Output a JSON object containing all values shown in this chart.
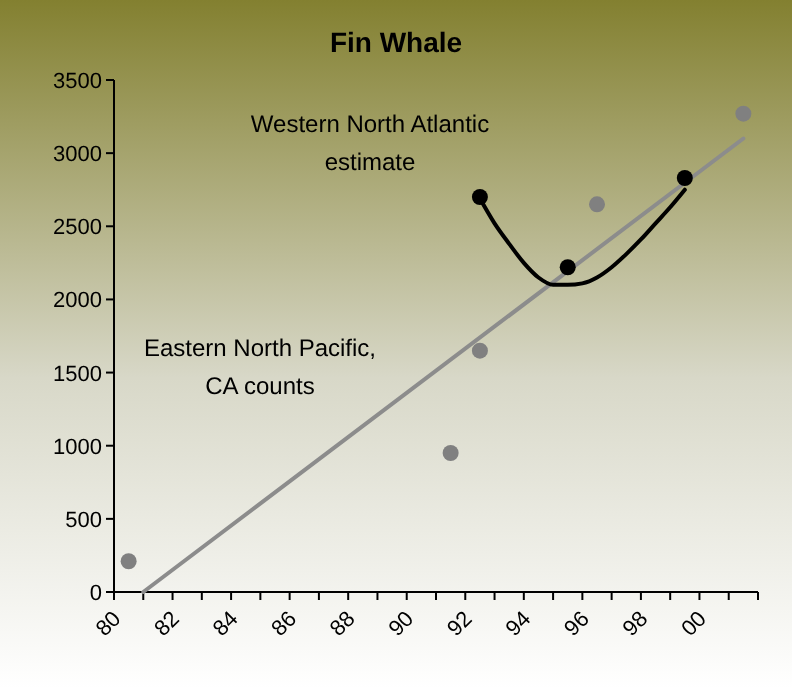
{
  "chart_data": {
    "type": "scatter",
    "title": "Fin Whale",
    "marker": "circle",
    "xlim": [
      1980,
      2002
    ],
    "xticks": [
      {
        "value": 1980,
        "label": "80"
      },
      {
        "value": 1982,
        "label": "82"
      },
      {
        "value": 1984,
        "label": "84"
      },
      {
        "value": 1986,
        "label": "86"
      },
      {
        "value": 1988,
        "label": "88"
      },
      {
        "value": 1990,
        "label": "90"
      },
      {
        "value": 1992,
        "label": "92"
      },
      {
        "value": 1994,
        "label": "94"
      },
      {
        "value": 1996,
        "label": "96"
      },
      {
        "value": 1998,
        "label": "98"
      },
      {
        "value": 2000,
        "label": "00"
      }
    ],
    "ylim": [
      0,
      3500
    ],
    "yticks": [
      0,
      500,
      1000,
      1500,
      2000,
      2500,
      3000,
      3500
    ],
    "annotations": [
      "Eastern North Pacific, CA counts",
      "Western North Atlantic estimate"
    ],
    "series": [
      {
        "color": "#808080",
        "x": [
          1980.5,
          1991.5,
          1992.5,
          1996.5,
          2001.5
        ],
        "values": [
          210,
          950,
          1650,
          2650,
          3270
        ]
      },
      {
        "color": "#000000",
        "x": [
          1992.5,
          1995.5,
          1999.5
        ],
        "values": [
          2700,
          2220,
          2830
        ]
      },
      {
        "type": "line",
        "marker": "none",
        "color": "#8c8c8c",
        "x": [
          1981,
          2001.5
        ],
        "values": [
          0,
          3100
        ]
      },
      {
        "type": "line",
        "marker": "none",
        "color": "#000000",
        "x": [
          1992.5,
          1993,
          1993.5,
          1994,
          1994.5,
          1995,
          1995.5,
          1996,
          1996.5,
          1997,
          1997.5,
          1998,
          1998.5,
          1999,
          1999.5
        ],
        "values": [
          2690,
          2520,
          2380,
          2250,
          2150,
          2100,
          2100,
          2110,
          2150,
          2220,
          2310,
          2410,
          2520,
          2630,
          2750
        ]
      }
    ]
  }
}
